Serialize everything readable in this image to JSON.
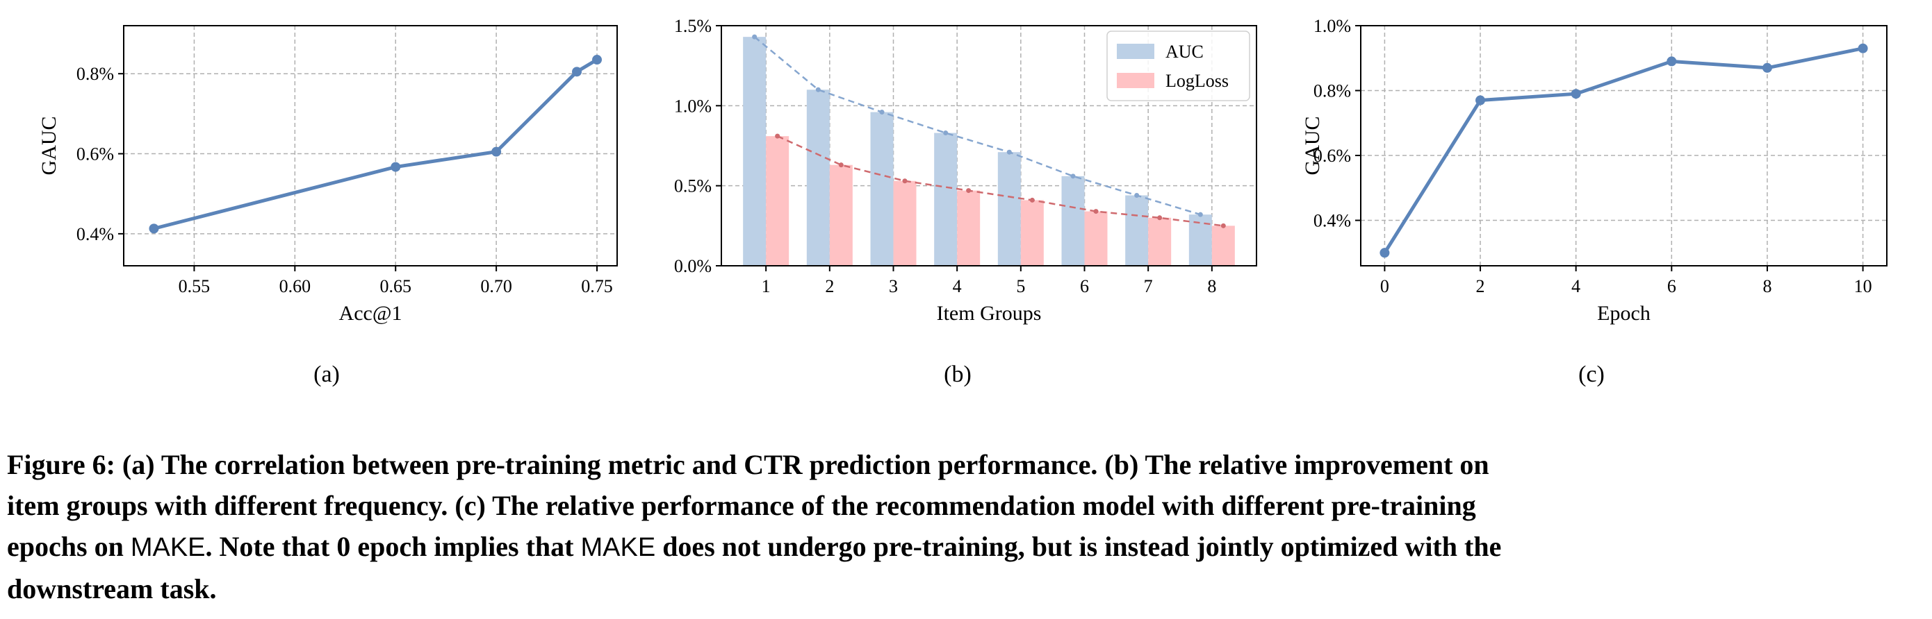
{
  "chart_data": [
    {
      "type": "line",
      "panel_label": "(a)",
      "xlabel": "Acc@1",
      "ylabel": "GAUC",
      "x": [
        0.53,
        0.65,
        0.7,
        0.74,
        0.75
      ],
      "y": [
        0.413,
        0.567,
        0.605,
        0.805,
        0.835
      ],
      "xlim": [
        0.515,
        0.76
      ],
      "ylim": [
        0.32,
        0.92
      ],
      "xticks": [
        0.55,
        0.6,
        0.65,
        0.7,
        0.75
      ],
      "xtick_labels": [
        "0.55",
        "0.60",
        "0.65",
        "0.70",
        "0.75"
      ],
      "yticks": [
        0.4,
        0.6,
        0.8
      ],
      "ytick_labels": [
        "0.4%",
        "0.6%",
        "0.8%"
      ],
      "grid": true,
      "color": "#5b84b9"
    },
    {
      "type": "bar",
      "panel_label": "(b)",
      "xlabel": "Item Groups",
      "ylabel": "",
      "categories": [
        "1",
        "2",
        "3",
        "4",
        "5",
        "6",
        "7",
        "8"
      ],
      "series": [
        {
          "name": "AUC",
          "values": [
            1.43,
            1.1,
            0.96,
            0.83,
            0.71,
            0.56,
            0.44,
            0.32
          ],
          "color": "#bcd0e6",
          "trend_color": "#86a6cf"
        },
        {
          "name": "LogLoss",
          "values": [
            0.81,
            0.63,
            0.53,
            0.47,
            0.41,
            0.34,
            0.3,
            0.25
          ],
          "color": "#ffc2c4",
          "trend_color": "#cf6a6e"
        }
      ],
      "ylim": [
        0.0,
        1.5
      ],
      "yticks": [
        0.0,
        0.5,
        1.0,
        1.5
      ],
      "ytick_labels": [
        "0.0%",
        "0.5%",
        "1.0%",
        "1.5%"
      ],
      "legend": "top-right",
      "grid": true
    },
    {
      "type": "line",
      "panel_label": "(c)",
      "xlabel": "Epoch",
      "ylabel": "GAUC",
      "x": [
        0,
        2,
        4,
        6,
        8,
        10
      ],
      "y": [
        0.3,
        0.77,
        0.79,
        0.89,
        0.87,
        0.93
      ],
      "xlim": [
        -0.5,
        10.5
      ],
      "ylim": [
        0.26,
        1.0
      ],
      "xticks": [
        0,
        2,
        4,
        6,
        8,
        10
      ],
      "xtick_labels": [
        "0",
        "2",
        "4",
        "6",
        "8",
        "10"
      ],
      "yticks": [
        0.4,
        0.6,
        0.8,
        1.0
      ],
      "ytick_labels": [
        "0.4%",
        "0.6%",
        "0.8%",
        "1.0%"
      ],
      "grid": true,
      "color": "#5b84b9"
    }
  ],
  "caption": {
    "line1": "Figure 6: (a) The correlation between pre-training metric and CTR prediction performance. (b) The relative improvement on",
    "line2": "item groups with different frequency. (c) The relative performance of the recommendation model with different pre-training",
    "line3_a": "epochs on ",
    "model_name": "MAKE",
    "line3_b": ". Note that 0 epoch implies that ",
    "line3_c": " does not undergo pre-training, but is instead jointly optimized with the",
    "line4": "downstream task."
  }
}
